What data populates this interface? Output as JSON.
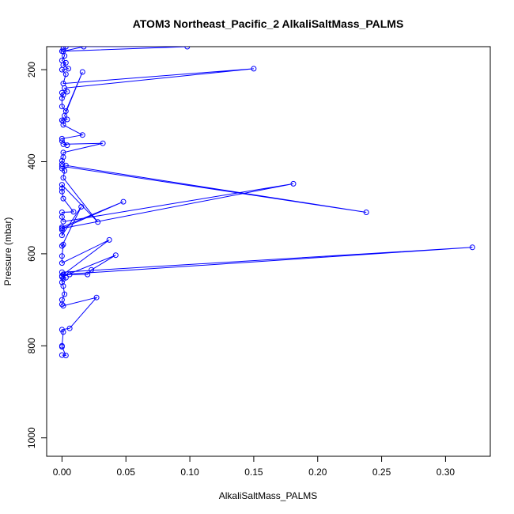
{
  "chart_data": {
    "type": "line",
    "title": "ATOM3 Northeast_Pacific_2 AlkaliSaltMass_PALMS",
    "xlabel": "AlkaliSaltMass_PALMS",
    "ylabel": "Pressure (mbar)",
    "xlim": [
      -0.012,
      0.335
    ],
    "ylim": [
      1040,
      150
    ],
    "y_inverted": true,
    "x_ticks": [
      0.0,
      0.05,
      0.1,
      0.15,
      0.2,
      0.25,
      0.3
    ],
    "x_tick_labels": [
      "0.00",
      "0.05",
      "0.10",
      "0.15",
      "0.20",
      "0.25",
      "0.30"
    ],
    "y_ticks": [
      200,
      400,
      600,
      800,
      1000
    ],
    "y_tick_labels": [
      "200",
      "400",
      "600",
      "800",
      "1000"
    ],
    "grid": false,
    "series": [
      {
        "color": "#0000ff",
        "marker": "open-circle",
        "points": [
          [
            0.0,
            820
          ],
          [
            0.003,
            821
          ],
          [
            0.0,
            802
          ],
          [
            0.0,
            800
          ],
          [
            0.001,
            770
          ],
          [
            0.0,
            765
          ],
          [
            0.006,
            762
          ],
          [
            0.027,
            695
          ],
          [
            0.001,
            713
          ],
          [
            0.0,
            710
          ],
          [
            0.0,
            700
          ],
          [
            0.002,
            688
          ],
          [
            0.001,
            670
          ],
          [
            0.0,
            662
          ],
          [
            0.001,
            655
          ],
          [
            0.003,
            652
          ],
          [
            0.0,
            648
          ],
          [
            0.006,
            645
          ],
          [
            0.02,
            645
          ],
          [
            0.023,
            635
          ],
          [
            0.042,
            603
          ],
          [
            0.0,
            650
          ],
          [
            0.0,
            640
          ],
          [
            0.321,
            586
          ],
          [
            0.001,
            645
          ],
          [
            0.037,
            570
          ],
          [
            0.0,
            620
          ],
          [
            0.0,
            605
          ],
          [
            0.001,
            580
          ],
          [
            0.0,
            583
          ],
          [
            0.015,
            498
          ],
          [
            0.0,
            560
          ],
          [
            0.0,
            548
          ],
          [
            0.0,
            542
          ],
          [
            0.048,
            487
          ],
          [
            0.0,
            545
          ],
          [
            0.181,
            448
          ],
          [
            0.001,
            530
          ],
          [
            0.0,
            520
          ],
          [
            0.0,
            510
          ],
          [
            0.009,
            509
          ],
          [
            0.001,
            480
          ],
          [
            0.0,
            465
          ],
          [
            0.0,
            458
          ],
          [
            0.0,
            450
          ],
          [
            0.028,
            531
          ],
          [
            0.001,
            435
          ],
          [
            0.002,
            420
          ],
          [
            0.0,
            415
          ],
          [
            0.0,
            410
          ],
          [
            0.238,
            510
          ],
          [
            0.003,
            408
          ],
          [
            0.0,
            405
          ],
          [
            0.0,
            398
          ],
          [
            0.001,
            390
          ],
          [
            0.001,
            380
          ],
          [
            0.032,
            360
          ],
          [
            0.001,
            362
          ],
          [
            0.004,
            364
          ],
          [
            0.0,
            355
          ],
          [
            0.0,
            350
          ],
          [
            0.016,
            342
          ],
          [
            0.001,
            320
          ],
          [
            0.001,
            312
          ],
          [
            0.0,
            310
          ],
          [
            0.004,
            308
          ],
          [
            0.002,
            300
          ],
          [
            0.016,
            205
          ],
          [
            0.003,
            290
          ],
          [
            0.0,
            280
          ],
          [
            0.0,
            262
          ],
          [
            0.001,
            255
          ],
          [
            0.0,
            250
          ],
          [
            0.004,
            248
          ],
          [
            0.002,
            240
          ],
          [
            0.15,
            198
          ],
          [
            0.001,
            230
          ],
          [
            0.003,
            210
          ],
          [
            0.0,
            200
          ],
          [
            0.005,
            198
          ],
          [
            0.001,
            190
          ],
          [
            0.003,
            185
          ],
          [
            0.0,
            180
          ],
          [
            0.002,
            170
          ],
          [
            0.001,
            160
          ],
          [
            0.017,
            150
          ],
          [
            0.003,
            150
          ],
          [
            0.098,
            150
          ],
          [
            0.0,
            160
          ],
          [
            0.001,
            155
          ]
        ]
      }
    ]
  }
}
